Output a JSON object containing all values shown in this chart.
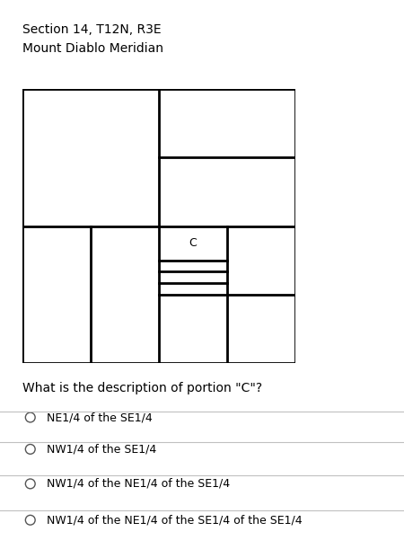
{
  "title_line1": "Section 14, T12N, R3E",
  "title_line2": "Mount Diablo Meridian",
  "question": "What is the description of portion \"C\"?",
  "options": [
    "NE1/4 of the SE1/4",
    "NW1/4 of the SE1/4",
    "NW1/4 of the NE1/4 of the SE1/4",
    "NW1/4 of the NE1/4 of the SE1/4 of the SE1/4"
  ],
  "bg_color": "#ffffff",
  "text_color": "#000000",
  "line_color": "#000000",
  "label_C": "C",
  "fig_width": 4.5,
  "fig_height": 6.21,
  "dpi": 100
}
